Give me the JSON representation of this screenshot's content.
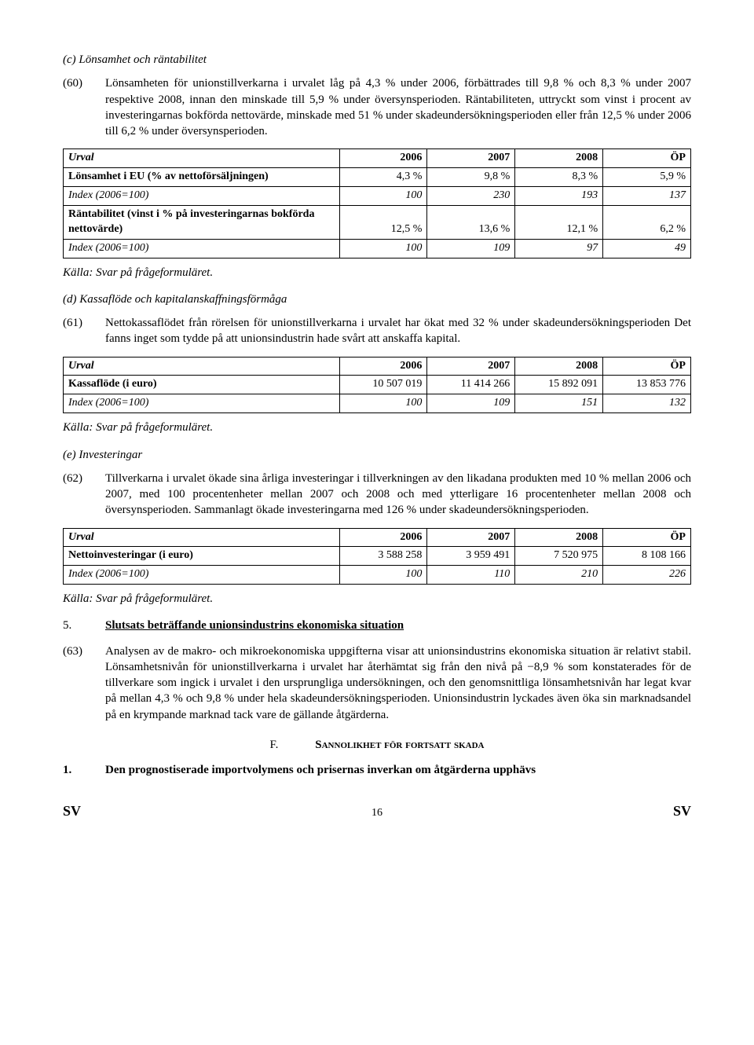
{
  "headings": {
    "c": "(c) Lönsamhet och räntabilitet",
    "d": "(d) Kassaflöde och kapitalanskaffningsförmåga",
    "e": "(e) Investeringar",
    "h5_num": "5.",
    "h5_text": "Slutsats beträffande unionsindustrins ekonomiska situation",
    "f_lead": "F.",
    "f_text": "Sannolikhet för fortsatt skada",
    "s1_num": "1.",
    "s1_text": "Den prognostiserade importvolymens och prisernas inverkan om åtgärderna upphävs"
  },
  "paras": {
    "p60_num": "(60)",
    "p60": "Lönsamheten för unionstillverkarna i urvalet låg på 4,3 % under 2006, förbättrades till 9,8 % och 8,3 % under 2007 respektive 2008, innan den minskade till 5,9 % under översynsperioden. Räntabiliteten, uttryckt som vinst i procent av investeringarnas bokförda nettovärde, minskade med 51 % under skadeundersökningsperioden eller från 12,5 % under 2006 till 6,2 % under översynsperioden.",
    "p61_num": "(61)",
    "p61": "Nettokassaflödet från rörelsen för unionstillverkarna i urvalet har ökat med 32 % under skadeundersökningsperioden Det fanns inget som tydde på att unionsindustrin hade svårt att anskaffa kapital.",
    "p62_num": "(62)",
    "p62": "Tillverkarna i urvalet ökade sina årliga investeringar i tillverkningen av den likadana produkten med 10 % mellan 2006 och 2007, med 100 procentenheter mellan 2007 och 2008 och med ytterligare 16 procentenheter mellan 2008 och översynsperioden. Sammanlagt ökade investeringarna med 126 % under skadeundersökningsperioden.",
    "p63_num": "(63)",
    "p63": "Analysen av de makro- och mikroekonomiska uppgifterna visar att unionsindustrins ekonomiska situation är relativt stabil. Lönsamhetsnivån för unionstillverkarna i urvalet har återhämtat sig från den nivå på −8,9 % som konstaterades för de tillverkare som ingick i urvalet i den ursprungliga undersökningen, och den genomsnittliga lönsamhetsnivån har legat kvar på mellan 4,3 % och 9,8 % under hela skadeundersökningsperioden. Unionsindustrin lyckades även öka sin marknadsandel på en krympande marknad tack vare de gällande åtgärderna."
  },
  "source": "Källa: Svar på frågeformuläret.",
  "table1": {
    "header": [
      "Urval",
      "2006",
      "2007",
      "2008",
      "ÖP"
    ],
    "rows": [
      {
        "label": "Lönsamhet i EU (% av nettoförsäljningen)",
        "cls": "rowlabel",
        "cells": [
          "4,3 %",
          "9,8 %",
          "8,3 %",
          "5,9 %"
        ]
      },
      {
        "label": "Index (2006=100)",
        "cls": "rowlabel-italic",
        "cells": [
          "100",
          "230",
          "193",
          "137"
        ]
      },
      {
        "label": "Räntabilitet (vinst i % på investeringarnas bokförda nettovärde)",
        "cls": "rowlabel",
        "cells": [
          "12,5 %",
          "13,6 %",
          "12,1 %",
          "6,2 %"
        ]
      },
      {
        "label": "Index (2006=100)",
        "cls": "rowlabel-italic",
        "cells": [
          "100",
          "109",
          "97",
          "49"
        ]
      }
    ]
  },
  "table2": {
    "header": [
      "Urval",
      "2006",
      "2007",
      "2008",
      "ÖP"
    ],
    "rows": [
      {
        "label": "Kassaflöde (i euro)",
        "cls": "rowlabel",
        "cells": [
          "10 507 019",
          "11 414 266",
          "15 892 091",
          "13 853 776"
        ]
      },
      {
        "label": "Index (2006=100)",
        "cls": "rowlabel-italic",
        "cells": [
          "100",
          "109",
          "151",
          "132"
        ]
      }
    ]
  },
  "table3": {
    "header": [
      "Urval",
      "2006",
      "2007",
      "2008",
      "ÖP"
    ],
    "rows": [
      {
        "label": "Nettoinvesteringar (i euro)",
        "cls": "rowlabel",
        "cells": [
          "3 588 258",
          "3 959 491",
          "7 520 975",
          "8 108 166"
        ]
      },
      {
        "label": "Index (2006=100)",
        "cls": "rowlabel-italic",
        "cells": [
          "100",
          "110",
          "210",
          "226"
        ]
      }
    ]
  },
  "footer": {
    "left": "SV",
    "page": "16",
    "right": "SV"
  },
  "col_widths": [
    "44%",
    "14%",
    "14%",
    "14%",
    "14%"
  ]
}
